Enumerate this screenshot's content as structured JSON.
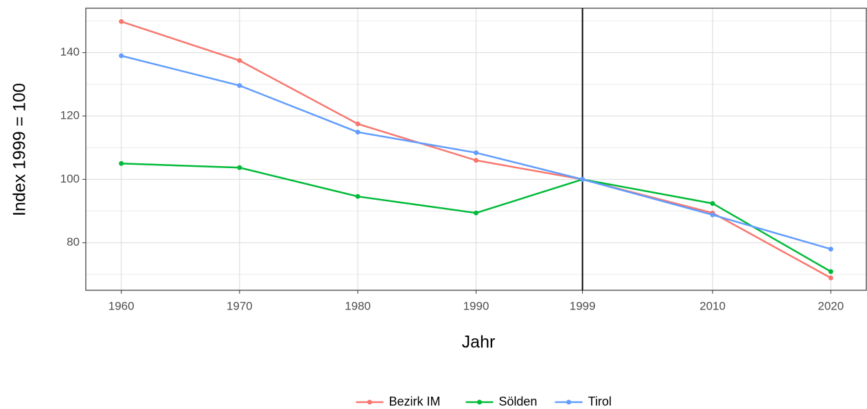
{
  "chart_data": {
    "type": "line",
    "xlabel": "Jahr",
    "ylabel": "Index 1999 = 100",
    "x": [
      1960,
      1970,
      1980,
      1990,
      1999,
      2010,
      2020
    ],
    "series": [
      {
        "name": "Bezirk IM",
        "color": "#F8766D",
        "values": [
          149.8,
          137.5,
          117.5,
          106.0,
          100,
          89.4,
          68.9
        ]
      },
      {
        "name": "Sölden",
        "color": "#00BA38",
        "values": [
          105.0,
          103.7,
          94.6,
          89.4,
          100,
          92.4,
          70.9
        ]
      },
      {
        "name": "Tirol",
        "color": "#619CFF",
        "values": [
          139.0,
          129.6,
          114.9,
          108.4,
          100,
          88.8,
          78.0
        ]
      }
    ],
    "xlim": [
      1957,
      2023
    ],
    "xticks": [
      1960,
      1970,
      1980,
      1990,
      1999,
      2010,
      2020
    ],
    "ylim": [
      65,
      154
    ],
    "yticks": [
      80,
      100,
      120,
      140
    ],
    "vline": 1999,
    "grid": true,
    "legend": "bottom"
  }
}
